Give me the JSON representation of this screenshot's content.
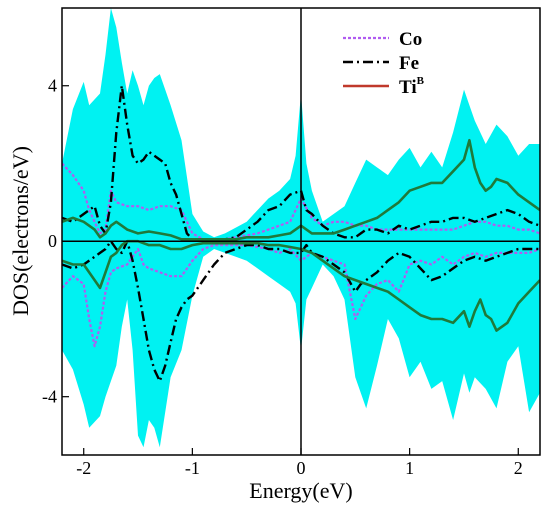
{
  "chart_data": {
    "type": "line",
    "title": "",
    "xlabel": "Energy(eV)",
    "ylabel": "DOS(electrons/eV)",
    "xlim": [
      -2.2,
      2.2
    ],
    "ylim": [
      -5.5,
      6.0
    ],
    "xticks": [
      -2,
      -1,
      0,
      1,
      2
    ],
    "xtick_labels": [
      "-2",
      "-1",
      "0",
      "1",
      "2"
    ],
    "yticks": [
      -4,
      0,
      4
    ],
    "ytick_labels": [
      "-4",
      "0",
      "4"
    ],
    "grid": false,
    "legend_position": "top-right",
    "legend": [
      {
        "base": "Co",
        "sup": ""
      },
      {
        "base": "Fe",
        "sup": ""
      },
      {
        "base": "Ti",
        "sup": "B"
      }
    ],
    "colors": {
      "total_fill": "#00f2f2",
      "co": "#b05cf0",
      "fe": "#000000",
      "ti": "#c0392b",
      "ti_green": "#1f7a3a",
      "axes": "#000000"
    },
    "total_dos": {
      "x": [
        -2.2,
        -2.1,
        -2.0,
        -1.95,
        -1.85,
        -1.8,
        -1.75,
        -1.7,
        -1.65,
        -1.6,
        -1.55,
        -1.5,
        -1.45,
        -1.4,
        -1.35,
        -1.3,
        -1.25,
        -1.2,
        -1.1,
        -1.0,
        -0.9,
        -0.8,
        -0.7,
        -0.6,
        -0.5,
        -0.4,
        -0.3,
        -0.2,
        -0.1,
        -0.05,
        0.0,
        0.05,
        0.1,
        0.2,
        0.3,
        0.4,
        0.5,
        0.6,
        0.7,
        0.8,
        0.9,
        1.0,
        1.1,
        1.2,
        1.3,
        1.4,
        1.5,
        1.55,
        1.6,
        1.7,
        1.8,
        1.9,
        2.0,
        2.1,
        2.2
      ],
      "up": [
        2.0,
        3.4,
        4.1,
        3.5,
        3.8,
        4.8,
        6.0,
        5.5,
        4.6,
        3.8,
        4.4,
        4.0,
        3.5,
        4.0,
        4.2,
        4.3,
        3.9,
        3.5,
        2.6,
        0.7,
        0.25,
        0.1,
        0.2,
        0.35,
        0.5,
        0.8,
        1.1,
        1.3,
        1.6,
        2.2,
        3.8,
        2.0,
        1.3,
        0.5,
        0.7,
        0.9,
        1.5,
        2.1,
        1.9,
        1.7,
        2.1,
        2.4,
        1.9,
        2.3,
        1.9,
        2.8,
        3.9,
        3.5,
        3.1,
        2.5,
        3.0,
        2.7,
        2.2,
        2.5,
        2.5
      ],
      "down": [
        -2.8,
        -3.3,
        -4.2,
        -4.8,
        -4.5,
        -4.0,
        -3.6,
        -3.2,
        -2.2,
        -1.5,
        -2.8,
        -5.0,
        -5.3,
        -4.6,
        -4.8,
        -5.3,
        -4.4,
        -3.5,
        -2.8,
        -1.4,
        -0.4,
        -0.2,
        -0.3,
        -0.4,
        -0.5,
        -0.7,
        -0.9,
        -1.1,
        -1.3,
        -1.6,
        -2.8,
        -1.5,
        -1.2,
        -0.6,
        -0.9,
        -1.5,
        -3.5,
        -4.3,
        -3.2,
        -2.0,
        -2.5,
        -3.5,
        -3.1,
        -3.8,
        -3.6,
        -4.6,
        -3.4,
        -3.9,
        -3.5,
        -3.8,
        -4.3,
        -3.1,
        -2.7,
        -4.4,
        -3.9
      ]
    },
    "series": [
      {
        "name": "Co",
        "x": [
          -2.2,
          -2.1,
          -2.0,
          -1.95,
          -1.9,
          -1.85,
          -1.8,
          -1.75,
          -1.7,
          -1.6,
          -1.5,
          -1.45,
          -1.4,
          -1.3,
          -1.2,
          -1.1,
          -1.0,
          -0.9,
          -0.8,
          -0.7,
          -0.6,
          -0.5,
          -0.4,
          -0.3,
          -0.2,
          -0.1,
          0.0,
          0.1,
          0.2,
          0.3,
          0.4,
          0.5,
          0.6,
          0.7,
          0.8,
          0.9,
          1.0,
          1.1,
          1.2,
          1.3,
          1.4,
          1.5,
          1.6,
          1.7,
          1.8,
          1.9,
          2.0,
          2.1,
          2.2
        ],
        "up": [
          2.0,
          1.7,
          1.3,
          0.8,
          0.5,
          0.2,
          0.3,
          1.3,
          1.0,
          0.9,
          0.9,
          0.85,
          0.8,
          0.9,
          0.9,
          0.8,
          0.2,
          0.05,
          0.05,
          0.05,
          0.1,
          0.15,
          0.2,
          0.3,
          0.4,
          0.5,
          1.1,
          0.6,
          0.4,
          0.5,
          0.5,
          0.4,
          0.4,
          0.3,
          0.3,
          0.3,
          0.3,
          0.3,
          0.3,
          0.3,
          0.3,
          0.4,
          0.5,
          0.5,
          0.4,
          0.4,
          0.3,
          0.3,
          0.2
        ],
        "down": [
          -1.2,
          -0.9,
          -1.1,
          -2.0,
          -2.7,
          -2.2,
          -1.3,
          -0.8,
          -0.7,
          -0.6,
          -0.2,
          -0.6,
          -0.7,
          -0.8,
          -0.9,
          -0.9,
          -0.5,
          -0.2,
          -0.1,
          -0.1,
          -0.1,
          -0.1,
          -0.15,
          -0.2,
          -0.3,
          -0.2,
          -0.5,
          -0.3,
          -0.4,
          -0.5,
          -0.6,
          -2.0,
          -1.4,
          -1.1,
          -1.0,
          -1.3,
          -0.6,
          -0.5,
          -0.6,
          -0.4,
          -0.6,
          -0.4,
          -0.3,
          -0.4,
          -0.3,
          -0.3,
          -0.3,
          -0.3,
          -0.2
        ]
      },
      {
        "name": "Fe",
        "x": [
          -2.2,
          -2.1,
          -2.0,
          -1.9,
          -1.85,
          -1.8,
          -1.75,
          -1.7,
          -1.65,
          -1.6,
          -1.55,
          -1.5,
          -1.45,
          -1.4,
          -1.35,
          -1.3,
          -1.25,
          -1.2,
          -1.15,
          -1.1,
          -1.05,
          -1.0,
          -0.9,
          -0.8,
          -0.7,
          -0.6,
          -0.5,
          -0.4,
          -0.3,
          -0.2,
          -0.1,
          0.0,
          0.05,
          0.1,
          0.2,
          0.3,
          0.4,
          0.5,
          0.55,
          0.6,
          0.7,
          0.8,
          0.9,
          1.0,
          1.1,
          1.2,
          1.3,
          1.4,
          1.5,
          1.6,
          1.7,
          1.8,
          1.9,
          2.0,
          2.1,
          2.2
        ],
        "up": [
          0.6,
          0.5,
          0.7,
          0.9,
          0.4,
          0.2,
          1.0,
          2.8,
          4.0,
          3.0,
          2.2,
          2.0,
          2.1,
          2.3,
          2.2,
          2.1,
          2.0,
          1.5,
          1.2,
          0.7,
          0.2,
          0.05,
          0.05,
          0.05,
          0.05,
          0.1,
          0.3,
          0.5,
          0.8,
          0.9,
          1.2,
          1.3,
          0.8,
          0.7,
          0.4,
          0.2,
          0.1,
          0.1,
          0.2,
          0.3,
          0.3,
          0.2,
          0.4,
          0.3,
          0.4,
          0.5,
          0.5,
          0.6,
          0.6,
          0.5,
          0.6,
          0.7,
          0.8,
          0.7,
          0.5,
          0.4
        ],
        "down": [
          -0.6,
          -0.7,
          -0.6,
          -0.4,
          -0.3,
          -0.2,
          0.0,
          -0.2,
          -0.3,
          0.0,
          -0.5,
          -1.2,
          -2.0,
          -2.8,
          -3.3,
          -3.6,
          -3.2,
          -2.6,
          -2.0,
          -1.7,
          -1.5,
          -1.4,
          -1.0,
          -0.6,
          -0.3,
          -0.2,
          -0.1,
          -0.1,
          -0.2,
          -0.2,
          -0.3,
          -0.3,
          -0.1,
          -0.3,
          -0.4,
          -0.6,
          -0.8,
          -1.3,
          -1.1,
          -1.0,
          -0.8,
          -0.5,
          -0.3,
          -0.4,
          -0.7,
          -1.0,
          -0.9,
          -0.7,
          -0.5,
          -0.4,
          -0.5,
          -0.4,
          -0.3,
          -0.2,
          -0.2,
          -0.2
        ]
      },
      {
        "name": "Ti",
        "x": [
          -2.2,
          -2.1,
          -2.0,
          -1.9,
          -1.85,
          -1.8,
          -1.75,
          -1.7,
          -1.65,
          -1.6,
          -1.5,
          -1.4,
          -1.3,
          -1.2,
          -1.1,
          -1.0,
          -0.9,
          -0.8,
          -0.7,
          -0.6,
          -0.5,
          -0.4,
          -0.3,
          -0.2,
          -0.1,
          0.0,
          0.1,
          0.2,
          0.3,
          0.4,
          0.5,
          0.6,
          0.7,
          0.8,
          0.9,
          1.0,
          1.1,
          1.2,
          1.3,
          1.4,
          1.5,
          1.55,
          1.6,
          1.65,
          1.7,
          1.75,
          1.8,
          1.9,
          2.0,
          2.1,
          2.2
        ],
        "up": [
          0.5,
          0.6,
          0.5,
          0.3,
          0.1,
          0.2,
          0.4,
          0.5,
          0.4,
          0.3,
          0.2,
          0.25,
          0.2,
          0.15,
          0.05,
          0.05,
          0.05,
          0.05,
          0.05,
          0.05,
          0.1,
          0.1,
          0.1,
          0.15,
          0.2,
          0.4,
          0.2,
          0.2,
          0.2,
          0.3,
          0.4,
          0.5,
          0.6,
          0.8,
          1.0,
          1.3,
          1.4,
          1.5,
          1.5,
          1.8,
          2.1,
          2.6,
          1.9,
          1.5,
          1.3,
          1.4,
          1.6,
          1.5,
          1.2,
          1.0,
          0.8
        ],
        "down": [
          -0.5,
          -0.6,
          -0.6,
          -1.0,
          -1.2,
          -0.8,
          -0.4,
          -0.3,
          -0.1,
          0.0,
          0.0,
          -0.1,
          -0.1,
          -0.2,
          -0.2,
          -0.1,
          -0.05,
          -0.05,
          -0.05,
          -0.05,
          -0.05,
          -0.05,
          -0.1,
          -0.1,
          -0.15,
          -0.2,
          -0.3,
          -0.5,
          -0.7,
          -0.9,
          -1.0,
          -1.1,
          -1.2,
          -1.3,
          -1.5,
          -1.7,
          -1.9,
          -2.0,
          -2.0,
          -2.1,
          -1.8,
          -2.2,
          -1.8,
          -1.5,
          -1.9,
          -2.0,
          -2.3,
          -2.1,
          -1.6,
          -1.3,
          -1.0
        ]
      }
    ]
  }
}
